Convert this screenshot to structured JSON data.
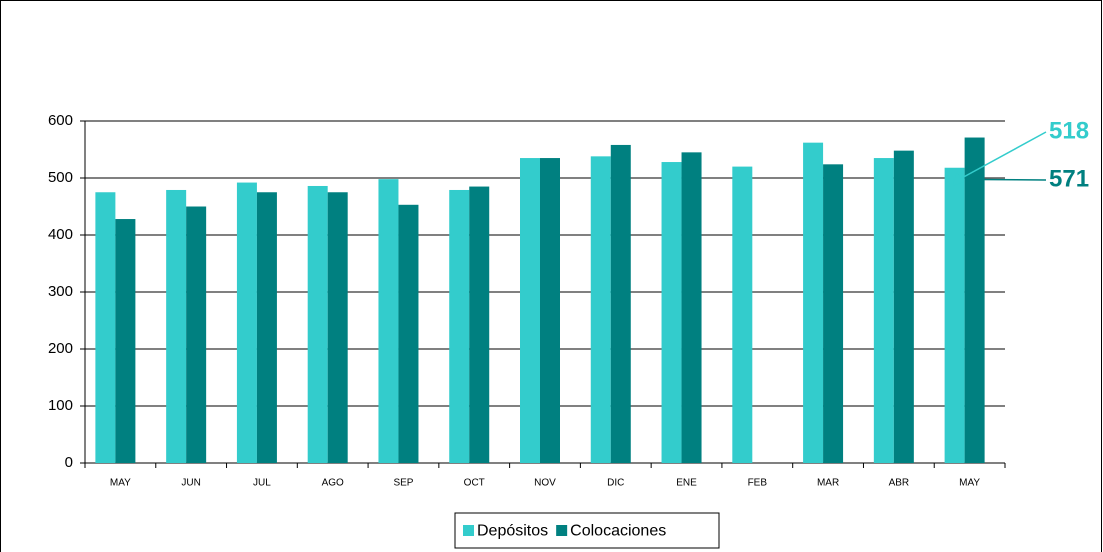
{
  "chart_data": {
    "type": "bar",
    "categories": [
      "MAY",
      "JUN",
      "JUL",
      "AGO",
      "SEP",
      "OCT",
      "NOV",
      "DIC",
      "ENE",
      "FEB",
      "MAR",
      "ABR",
      "MAY"
    ],
    "series": [
      {
        "name": "Depósitos",
        "color": "#33cccc",
        "values": [
          475,
          479,
          492,
          486,
          498,
          479,
          535,
          538,
          528,
          520,
          562,
          535,
          518
        ]
      },
      {
        "name": "Colocaciones",
        "color": "#008080",
        "values": [
          428,
          450,
          475,
          475,
          453,
          485,
          535,
          558,
          545,
          null,
          524,
          548,
          571
        ]
      }
    ],
    "ylim": [
      0,
      600
    ],
    "yticks": [
      0,
      100,
      200,
      300,
      400,
      500,
      600
    ],
    "grid": true,
    "legend": "bottom"
  }
}
